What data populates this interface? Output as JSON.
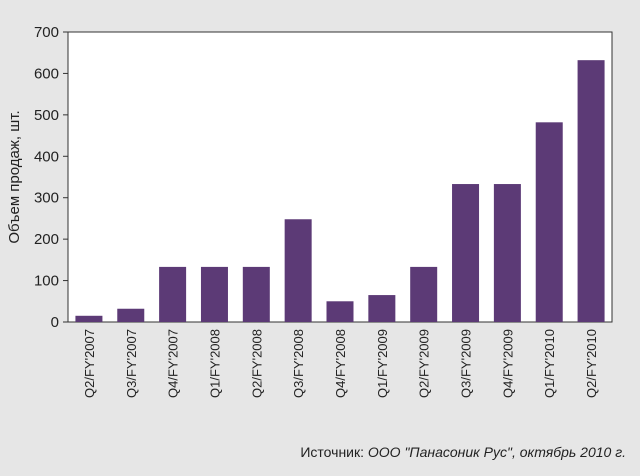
{
  "chart_data": {
    "type": "bar",
    "categories": [
      "Q2/FY'2007",
      "Q3/FY'2007",
      "Q4/FY'2007",
      "Q1/FY'2008",
      "Q2/FY'2008",
      "Q3/FY'2008",
      "Q4/FY'2008",
      "Q1/FY'2009",
      "Q2/FY'2009",
      "Q3/FY'2009",
      "Q4/FY'2009",
      "Q1/FY'2010",
      "Q2/FY'2010"
    ],
    "values": [
      15,
      32,
      133,
      133,
      133,
      248,
      50,
      65,
      133,
      333,
      333,
      482,
      632
    ],
    "title": "",
    "xlabel": "",
    "ylabel": "Объем продаж, шт.",
    "ylim": [
      0,
      700
    ],
    "yticks": [
      0,
      100,
      200,
      300,
      400,
      500,
      600,
      700
    ],
    "grid": false,
    "bar_color": "#5c3a76",
    "plot_background": "#ffffff",
    "page_background": "#e6e6e6"
  },
  "source": {
    "label": "Источник: ",
    "text": "ООО \"Панасоник Рус\", октябрь 2010 г."
  }
}
